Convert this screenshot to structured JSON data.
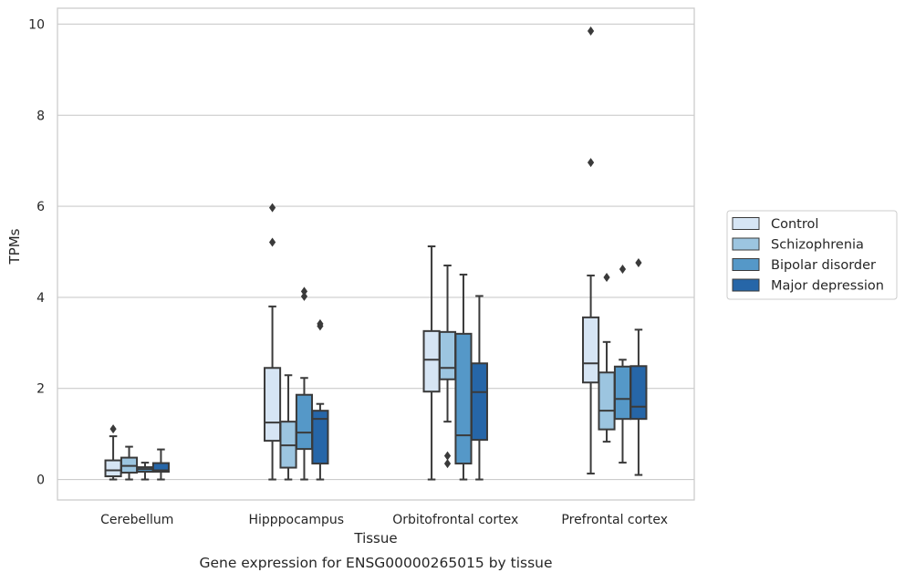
{
  "caption": "Gene expression for ENSG00000265015 by tissue",
  "chart_data": {
    "type": "box",
    "xlabel": "Tissue",
    "ylabel": "TPMs",
    "ylim": [
      -0.45,
      10.35
    ],
    "yticks": [
      0,
      2,
      4,
      6,
      8,
      10
    ],
    "grid": "horizontal",
    "legend_position": "right",
    "categories": [
      "Cerebellum",
      "Hipppocampus",
      "Orbitofrontal cortex",
      "Prefrontal cortex"
    ],
    "series": [
      {
        "name": "Control",
        "color": "#d6e5f4",
        "boxes": [
          {
            "whislo": 0.0,
            "q1": 0.07,
            "med": 0.2,
            "q3": 0.42,
            "whishi": 0.95,
            "fliers": [
              1.11
            ]
          },
          {
            "whislo": 0.0,
            "q1": 0.85,
            "med": 1.25,
            "q3": 2.45,
            "whishi": 3.8,
            "fliers": [
              5.21,
              5.97
            ]
          },
          {
            "whislo": 0.0,
            "q1": 1.93,
            "med": 2.63,
            "q3": 3.26,
            "whishi": 5.12,
            "fliers": []
          },
          {
            "whislo": 0.13,
            "q1": 2.13,
            "med": 2.55,
            "q3": 3.56,
            "whishi": 4.48,
            "fliers": [
              6.96,
              9.85
            ]
          }
        ]
      },
      {
        "name": "Schizophrenia",
        "color": "#9cc5e0",
        "boxes": [
          {
            "whislo": 0.0,
            "q1": 0.15,
            "med": 0.3,
            "q3": 0.48,
            "whishi": 0.72,
            "fliers": []
          },
          {
            "whislo": 0.0,
            "q1": 0.26,
            "med": 0.75,
            "q3": 1.27,
            "whishi": 2.29,
            "fliers": []
          },
          {
            "whislo": 1.27,
            "q1": 2.2,
            "med": 2.45,
            "q3": 3.24,
            "whishi": 4.7,
            "fliers": [
              0.35,
              0.52
            ]
          },
          {
            "whislo": 0.83,
            "q1": 1.1,
            "med": 1.51,
            "q3": 2.35,
            "whishi": 3.02,
            "fliers": [
              4.44
            ]
          }
        ]
      },
      {
        "name": "Bipolar disorder",
        "color": "#5598c8",
        "boxes": [
          {
            "whislo": 0.0,
            "q1": 0.17,
            "med": 0.23,
            "q3": 0.27,
            "whishi": 0.37,
            "fliers": []
          },
          {
            "whislo": 0.0,
            "q1": 0.67,
            "med": 1.03,
            "q3": 1.86,
            "whishi": 2.23,
            "fliers": [
              4.02,
              4.13
            ]
          },
          {
            "whislo": 0.0,
            "q1": 0.35,
            "med": 0.97,
            "q3": 3.2,
            "whishi": 4.5,
            "fliers": []
          },
          {
            "whislo": 0.37,
            "q1": 1.33,
            "med": 1.77,
            "q3": 2.48,
            "whishi": 2.63,
            "fliers": [
              4.62
            ]
          }
        ]
      },
      {
        "name": "Major depression",
        "color": "#2666a8",
        "boxes": [
          {
            "whislo": 0.0,
            "q1": 0.17,
            "med": 0.2,
            "q3": 0.36,
            "whishi": 0.66,
            "fliers": []
          },
          {
            "whislo": 0.0,
            "q1": 0.35,
            "med": 1.33,
            "q3": 1.51,
            "whishi": 1.66,
            "fliers": [
              3.37,
              3.42
            ]
          },
          {
            "whislo": 0.0,
            "q1": 0.87,
            "med": 1.92,
            "q3": 2.55,
            "whishi": 4.03,
            "fliers": []
          },
          {
            "whislo": 0.1,
            "q1": 1.33,
            "med": 1.6,
            "q3": 2.49,
            "whishi": 3.29,
            "fliers": [
              4.76
            ]
          }
        ]
      }
    ]
  }
}
